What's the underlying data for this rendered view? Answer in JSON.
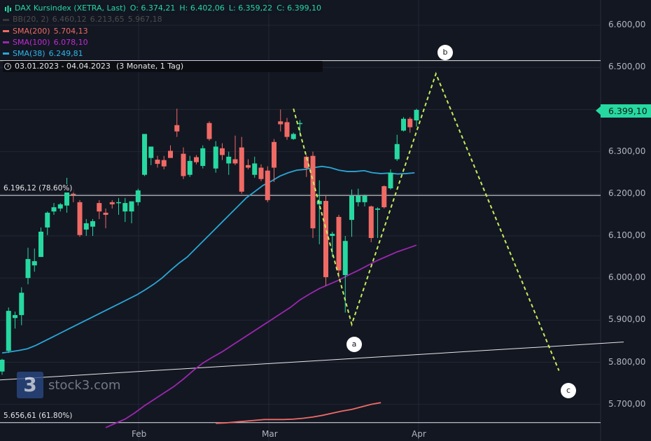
{
  "header": {
    "title": "DAX Kursindex (XETRA, Last)",
    "open": "O: 6.374,21",
    "high": "H: 6.402,06",
    "low": "L: 6.359,22",
    "close": "C: 6.399,10"
  },
  "indicators": [
    {
      "label": "BB(20, 2)",
      "values": [
        "6.460,12",
        "6.213,65",
        "5.967,18"
      ],
      "color": "#3a3a3a",
      "text_color": "#4d4d4d"
    },
    {
      "label": "SMA(200)",
      "values": [
        "5.704,13"
      ],
      "color": "#f06a65",
      "text_color": "#f06a65"
    },
    {
      "label": "SMA(100)",
      "values": [
        "6.078,10"
      ],
      "color": "#9c27b0",
      "text_color": "#c02bd4"
    },
    {
      "label": "SMA(38)",
      "values": [
        "6.249,81"
      ],
      "color": "#2aa7d6",
      "text_color": "#2fb6ea"
    }
  ],
  "range": {
    "text": "03.01.2023 - 04.04.2023",
    "interval": "(3 Monate, 1 Tag)"
  },
  "fib_labels": {
    "upper": "6.196,12 (78.60%)",
    "lower": "5.656,61 (61.80%)"
  },
  "current_price": "6.399,10",
  "watermark": "stock3.com",
  "watermark_logo": "3",
  "colors": {
    "up": "#26d9a0",
    "down": "#f06a65",
    "background": "#131722",
    "wave": "#c6ec5a"
  },
  "chart_data": {
    "type": "candlestick",
    "title": "DAX Kursindex (XETRA, Last)",
    "x_ticks": [
      "Feb",
      "Mar",
      "Apr"
    ],
    "y_ticks": [
      "6.600,00",
      "6.500,00",
      "6.400,00",
      "6.300,00",
      "6.200,00",
      "6.100,00",
      "6.000,00",
      "5.900,00",
      "5.800,00",
      "5.700,00"
    ],
    "ylim": [
      5650,
      6650
    ],
    "grid": true,
    "candles": [
      {
        "o": 5778,
        "h": 5808,
        "l": 5770,
        "c": 5806
      },
      {
        "o": 5827,
        "h": 5930,
        "l": 5822,
        "c": 5922
      },
      {
        "o": 5905,
        "h": 5920,
        "l": 5880,
        "c": 5912
      },
      {
        "o": 5912,
        "h": 5978,
        "l": 5888,
        "c": 5965
      },
      {
        "o": 6000,
        "h": 6072,
        "l": 5985,
        "c": 6045
      },
      {
        "o": 6030,
        "h": 6070,
        "l": 6015,
        "c": 6040
      },
      {
        "o": 6050,
        "h": 6120,
        "l": 6050,
        "c": 6110
      },
      {
        "o": 6120,
        "h": 6158,
        "l": 6102,
        "c": 6155
      },
      {
        "o": 6158,
        "h": 6178,
        "l": 6150,
        "c": 6168
      },
      {
        "o": 6165,
        "h": 6178,
        "l": 6158,
        "c": 6175
      },
      {
        "o": 6172,
        "h": 6238,
        "l": 6155,
        "c": 6205
      },
      {
        "o": 6200,
        "h": 6210,
        "l": 6180,
        "c": 6198
      },
      {
        "o": 6180,
        "h": 6185,
        "l": 6098,
        "c": 6102
      },
      {
        "o": 6115,
        "h": 6140,
        "l": 6100,
        "c": 6130
      },
      {
        "o": 6122,
        "h": 6140,
        "l": 6100,
        "c": 6135
      },
      {
        "o": 6178,
        "h": 6185,
        "l": 6140,
        "c": 6158
      },
      {
        "o": 6155,
        "h": 6165,
        "l": 6118,
        "c": 6150
      },
      {
        "o": 6180,
        "h": 6185,
        "l": 6165,
        "c": 6175
      },
      {
        "o": 6180,
        "h": 6190,
        "l": 6150,
        "c": 6180
      },
      {
        "o": 6158,
        "h": 6190,
        "l": 6133,
        "c": 6178
      },
      {
        "o": 6158,
        "h": 6182,
        "l": 6130,
        "c": 6182
      },
      {
        "o": 6180,
        "h": 6212,
        "l": 6172,
        "c": 6208
      },
      {
        "o": 6245,
        "h": 6338,
        "l": 6242,
        "c": 6342
      },
      {
        "o": 6285,
        "h": 6312,
        "l": 6268,
        "c": 6312
      },
      {
        "o": 6281,
        "h": 6290,
        "l": 6262,
        "c": 6271
      },
      {
        "o": 6280,
        "h": 6290,
        "l": 6258,
        "c": 6265
      },
      {
        "o": 6302,
        "h": 6315,
        "l": 6290,
        "c": 6285
      },
      {
        "o": 6363,
        "h": 6402,
        "l": 6335,
        "c": 6348
      },
      {
        "o": 6295,
        "h": 6310,
        "l": 6235,
        "c": 6242
      },
      {
        "o": 6245,
        "h": 6290,
        "l": 6240,
        "c": 6278
      },
      {
        "o": 6287,
        "h": 6292,
        "l": 6270,
        "c": 6275
      },
      {
        "o": 6266,
        "h": 6315,
        "l": 6260,
        "c": 6308
      },
      {
        "o": 6368,
        "h": 6372,
        "l": 6326,
        "c": 6330
      },
      {
        "o": 6260,
        "h": 6325,
        "l": 6250,
        "c": 6312
      },
      {
        "o": 6308,
        "h": 6320,
        "l": 6280,
        "c": 6292
      },
      {
        "o": 6272,
        "h": 6300,
        "l": 6245,
        "c": 6288
      },
      {
        "o": 6282,
        "h": 6338,
        "l": 6268,
        "c": 6272
      },
      {
        "o": 6310,
        "h": 6335,
        "l": 6200,
        "c": 6205
      },
      {
        "o": 6268,
        "h": 6282,
        "l": 6258,
        "c": 6262
      },
      {
        "o": 6245,
        "h": 6288,
        "l": 6238,
        "c": 6272
      },
      {
        "o": 6262,
        "h": 6270,
        "l": 6230,
        "c": 6235
      },
      {
        "o": 6255,
        "h": 6265,
        "l": 6180,
        "c": 6185
      },
      {
        "o": 6323,
        "h": 6330,
        "l": 6228,
        "c": 6262
      },
      {
        "o": 6372,
        "h": 6400,
        "l": 6348,
        "c": 6365
      },
      {
        "o": 6370,
        "h": 6380,
        "l": 6328,
        "c": 6335
      },
      {
        "o": 6330,
        "h": 6345,
        "l": 6328,
        "c": 6342
      },
      {
        "o": 6368,
        "h": 6375,
        "l": 6338,
        "c": 6368
      },
      {
        "o": 6288,
        "h": 6292,
        "l": 6240,
        "c": 6261
      },
      {
        "o": 6290,
        "h": 6300,
        "l": 6095,
        "c": 6118
      },
      {
        "o": 6175,
        "h": 6232,
        "l": 6080,
        "c": 6183
      },
      {
        "o": 6183,
        "h": 6195,
        "l": 5982,
        "c": 6002
      },
      {
        "o": 6100,
        "h": 6110,
        "l": 6050,
        "c": 6105
      },
      {
        "o": 6145,
        "h": 6150,
        "l": 6000,
        "c": 6018
      },
      {
        "o": 6007,
        "h": 6100,
        "l": 5918,
        "c": 6088
      },
      {
        "o": 6138,
        "h": 6210,
        "l": 6098,
        "c": 6195
      },
      {
        "o": 6180,
        "h": 6212,
        "l": 6170,
        "c": 6195
      },
      {
        "o": 6180,
        "h": 6198,
        "l": 6170,
        "c": 6195
      },
      {
        "o": 6170,
        "h": 6172,
        "l": 6085,
        "c": 6095
      },
      {
        "o": 6162,
        "h": 6168,
        "l": 6095,
        "c": 6165
      },
      {
        "o": 6218,
        "h": 6220,
        "l": 6165,
        "c": 6168
      },
      {
        "o": 6213,
        "h": 6258,
        "l": 6210,
        "c": 6250
      },
      {
        "o": 6282,
        "h": 6340,
        "l": 6278,
        "c": 6318
      },
      {
        "o": 6350,
        "h": 6382,
        "l": 6348,
        "c": 6378
      },
      {
        "o": 6378,
        "h": 6382,
        "l": 6345,
        "c": 6358
      },
      {
        "o": 6374.21,
        "h": 6402.06,
        "l": 6359.22,
        "c": 6399.1
      }
    ],
    "series": [
      {
        "name": "SMA(38)",
        "color": "#2aa7d6",
        "x_start": 0,
        "values": [
          5822,
          5825,
          5828,
          5832,
          5840,
          5850,
          5860,
          5870,
          5880,
          5890,
          5900,
          5910,
          5920,
          5930,
          5940,
          5950,
          5960,
          5972,
          5985,
          6000,
          6018,
          6035,
          6050,
          6070,
          6090,
          6110,
          6130,
          6150,
          6170,
          6190,
          6205,
          6220,
          6230,
          6242,
          6250,
          6256,
          6258,
          6262,
          6265,
          6262,
          6256,
          6253,
          6253,
          6255,
          6250,
          6248,
          6249,
          6247,
          6248,
          6249.81
        ]
      },
      {
        "name": "SMA(100)",
        "color": "#9c27b0",
        "x_start": 16,
        "values": [
          5645,
          5655,
          5665,
          5680,
          5697,
          5712,
          5727,
          5742,
          5760,
          5780,
          5798,
          5812,
          5825,
          5840,
          5855,
          5870,
          5885,
          5900,
          5915,
          5930,
          5948,
          5962,
          5975,
          5985,
          5995,
          6007,
          6018,
          6030,
          6042,
          6052,
          6062,
          6070,
          6078.1
        ]
      },
      {
        "name": "SMA(200)",
        "color": "#f06a65",
        "x_start": 33,
        "values": [
          5655,
          5656,
          5658,
          5660,
          5662,
          5664,
          5664,
          5664,
          5665,
          5667,
          5670,
          5674,
          5679,
          5684,
          5688,
          5694,
          5700,
          5704.13
        ]
      }
    ],
    "fibonacci": [
      {
        "label": "6.196,12 (78.60%)",
        "value": 6196.12
      },
      {
        "label": "5.656,61 (61.80%)",
        "value": 5656.61
      },
      {
        "value": 6516
      }
    ],
    "trendline": {
      "x": [
        0,
        96
      ],
      "y": [
        5758,
        5848
      ]
    },
    "wave_projection": {
      "labels": [
        "a",
        "b",
        "c"
      ],
      "points": [
        {
          "x": 45,
          "y": 6402
        },
        {
          "x": 54,
          "y": 5890
        },
        {
          "x": 67,
          "y": 6485
        },
        {
          "x": 86,
          "y": 5780
        }
      ]
    }
  }
}
